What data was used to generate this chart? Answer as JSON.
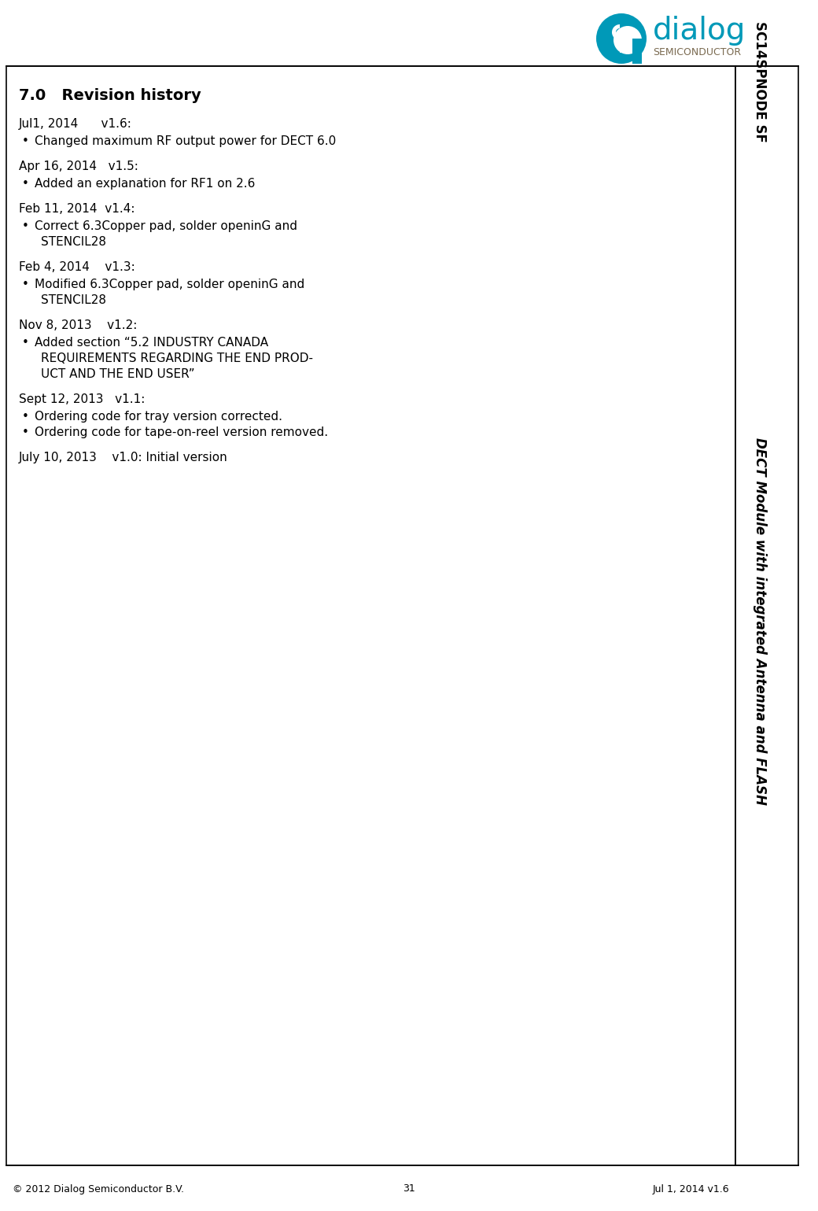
{
  "bg_color": "#ffffff",
  "logo_dialog_color": "#0099b8",
  "logo_semi_color": "#7a6a50",
  "sidebar_top_text": "SC14SPNODE SF",
  "sidebar_bottom_text": "DECT Module with integrated Antenna and FLASH",
  "section_title": "7.0   Revision history",
  "entries": [
    {
      "date_ver": "Jul1, 2014      v1.6:",
      "bullets": [
        "Changed maximum RF output power for DECT 6.0"
      ]
    },
    {
      "date_ver": "Apr 16, 2014   v1.5:",
      "bullets": [
        "Added an explanation for RF1 on 2.6"
      ]
    },
    {
      "date_ver": "Feb 11, 2014  v1.4:",
      "bullets": [
        "Correct 6.3Copper pad, solder openinG and",
        "    STENCIL28"
      ],
      "bullet_count": 1
    },
    {
      "date_ver": "Feb 4, 2014    v1.3:",
      "bullets": [
        "Modified 6.3Copper pad, solder openinG and",
        "    STENCIL28"
      ],
      "bullet_count": 1
    },
    {
      "date_ver": "Nov 8, 2013    v1.2:",
      "bullets": [
        "Added section “5.2 INDUSTRY CANADA",
        "    REQUIREMENTS REGARDING THE END PROD-",
        "    UCT AND THE END USER”"
      ],
      "bullet_count": 1
    },
    {
      "date_ver": "Sept 12, 2013   v1.1:",
      "bullets": [
        "Ordering code for tray version corrected.",
        "Ordering code for tape-on-reel version removed."
      ],
      "bullet_count": 2
    },
    {
      "date_ver": "July 10, 2013    v1.0: Initial version",
      "bullets": [],
      "bullet_count": 0
    }
  ],
  "footer_left": "© 2012 Dialog Semiconductor B.V.",
  "footer_center": "31",
  "footer_right": "Jul 1, 2014 v1.6",
  "border_color": "#000000",
  "title_fontsize": 14,
  "body_fontsize": 11
}
